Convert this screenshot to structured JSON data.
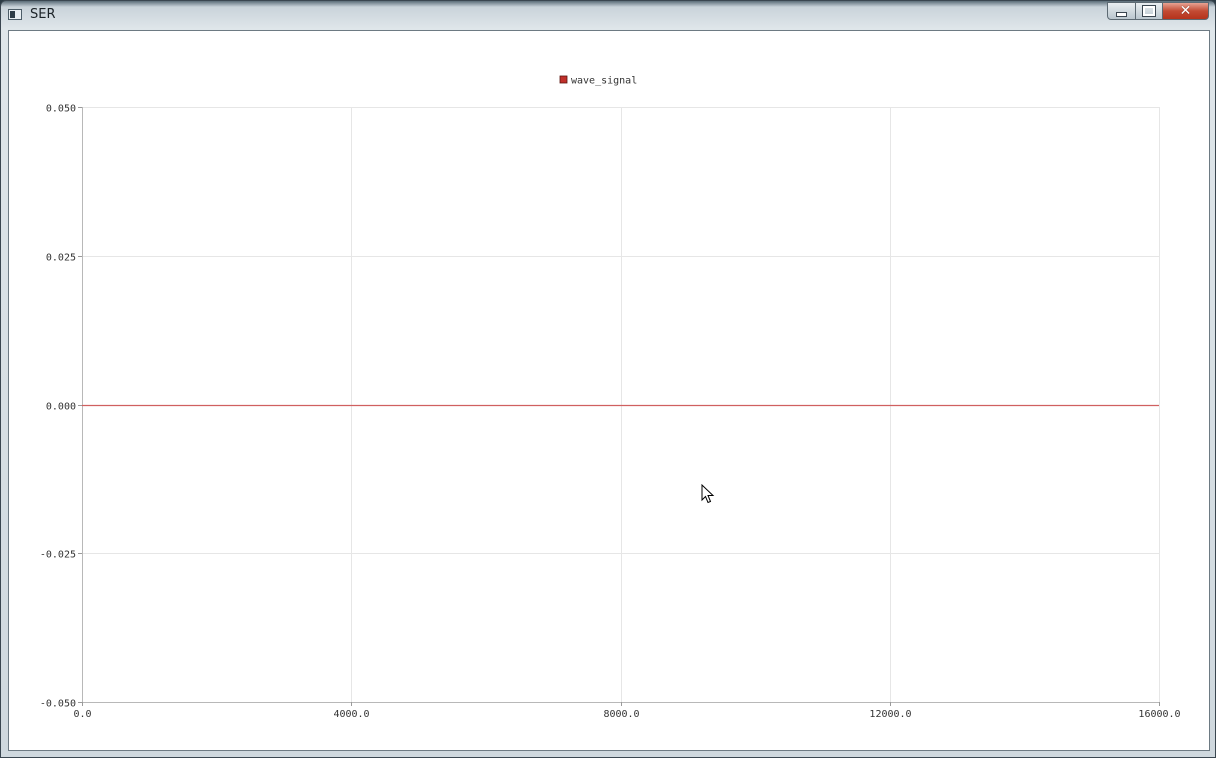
{
  "window": {
    "title": "SER",
    "icons": {
      "app": "app-window-icon",
      "minimize": "minimize-icon",
      "maximize": "maximize-icon",
      "close": "close-icon"
    },
    "close_glyph": "✕"
  },
  "chart_data": {
    "type": "line",
    "series": [
      {
        "name": "wave_signal",
        "color": "#d06060",
        "marker_color": "#c0302a",
        "x": [
          0,
          16000
        ],
        "y": [
          0,
          0
        ]
      }
    ],
    "xlim": [
      0,
      16000
    ],
    "ylim": [
      -0.05,
      0.05
    ],
    "x_ticks": [
      0,
      4000,
      8000,
      12000,
      16000
    ],
    "x_tick_labels": [
      "0.0",
      "4000.0",
      "8000.0",
      "12000.0",
      "16000.0"
    ],
    "y_ticks": [
      0.05,
      0.025,
      0,
      -0.025,
      -0.05
    ],
    "y_tick_labels": [
      "0.050",
      "0.025",
      "0.000",
      "-0.025",
      "-0.050"
    ],
    "grid": true,
    "legend": "top-center",
    "grid_color": "#e6e6e6"
  }
}
